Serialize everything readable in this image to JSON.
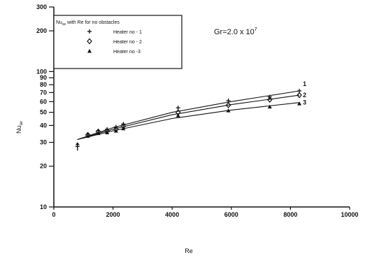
{
  "chart_data": {
    "type": "line",
    "title": "",
    "annotation": "Gr=2.0 x 10",
    "annotation_exponent": "7",
    "xlabel": "Re",
    "ylabel": "Nu",
    "ylabel_sub": "av",
    "xlim": [
      0,
      10000
    ],
    "ylim": [
      10,
      300
    ],
    "y_scale": "log",
    "x_ticks": [
      0,
      2000,
      4000,
      6000,
      8000,
      10000
    ],
    "x_tick_labels": [
      "0",
      "2000",
      "4000",
      "6000",
      "8000",
      "10000"
    ],
    "y_ticks": [
      10,
      20,
      30,
      40,
      50,
      60,
      70,
      80,
      90,
      100,
      200,
      300
    ],
    "y_tick_labels": [
      "10",
      "20",
      "30",
      "40",
      "50",
      "60",
      "70",
      "80",
      "90",
      "100",
      "200",
      "300"
    ],
    "legend": {
      "title": "Nu",
      "title_sub": "av",
      "title_rest": " with Re for no obstacles",
      "position": "top-left"
    },
    "series": [
      {
        "name": "Heater no - 1",
        "marker": "+",
        "curve_label": "1",
        "points": [
          [
            800,
            28
          ],
          [
            1150,
            34.5
          ],
          [
            1500,
            36.5
          ],
          [
            1800,
            37.5
          ],
          [
            2100,
            39
          ],
          [
            2350,
            41
          ],
          [
            4200,
            54
          ],
          [
            5900,
            61
          ],
          [
            7300,
            65
          ],
          [
            8300,
            72
          ]
        ],
        "fit": [
          [
            800,
            31.5
          ],
          [
            2000,
            38.5
          ],
          [
            4000,
            50
          ],
          [
            6000,
            60
          ],
          [
            8300,
            72
          ]
        ]
      },
      {
        "name": "Heater no - 2",
        "marker": "diamond",
        "curve_label": "2",
        "points": [
          [
            1150,
            34
          ],
          [
            1500,
            36
          ],
          [
            1800,
            36.5
          ],
          [
            2100,
            37.5
          ],
          [
            2350,
            39.5
          ],
          [
            4200,
            50
          ],
          [
            5900,
            56.5
          ],
          [
            7300,
            62
          ],
          [
            8300,
            67
          ]
        ],
        "fit": [
          [
            800,
            31.5
          ],
          [
            2000,
            37.5
          ],
          [
            4000,
            48
          ],
          [
            6000,
            57
          ],
          [
            8300,
            67
          ]
        ]
      },
      {
        "name": "Heater no -3",
        "marker": "triangle",
        "curve_label": "3",
        "points": [
          [
            1150,
            33.5
          ],
          [
            1500,
            35
          ],
          [
            1800,
            35.5
          ],
          [
            2100,
            36.5
          ],
          [
            2350,
            38
          ],
          [
            4200,
            47.5
          ],
          [
            5900,
            51.5
          ],
          [
            7300,
            55
          ],
          [
            8300,
            58
          ]
        ],
        "fit": [
          [
            800,
            31.5
          ],
          [
            2000,
            36.5
          ],
          [
            4000,
            45
          ],
          [
            6000,
            52
          ],
          [
            8300,
            59
          ]
        ]
      }
    ],
    "grid": false,
    "colors": {
      "ink": "#111111",
      "background": "#ffffff"
    }
  }
}
